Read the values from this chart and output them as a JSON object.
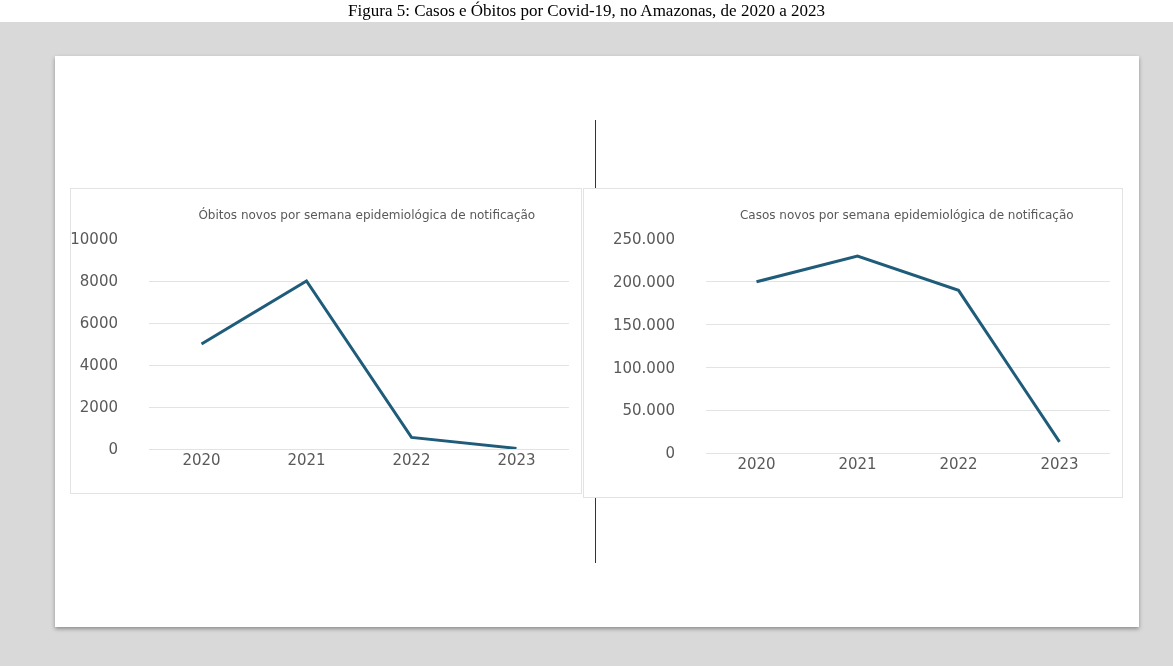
{
  "chart_data": [
    {
      "type": "line",
      "title": "Óbitos novos por semana epidemiológica de notificação",
      "annotations": [
        "Figura 5: Casos e Óbitos por Covid-19, no Amazonas, de 2020 a 2023"
      ],
      "categories": [
        "2020",
        "2021",
        "2022",
        "2023"
      ],
      "series": [
        {
          "color": "#1f5c7a",
          "values": [
            5000,
            8000,
            550,
            30
          ]
        }
      ],
      "ylim": [
        0,
        10000
      ],
      "yticks": [
        0,
        2000,
        4000,
        6000,
        8000,
        10000
      ],
      "grid": "y",
      "marker": "none",
      "line_style": "solid"
    },
    {
      "type": "line",
      "title": "Casos novos por semana epidemiológica de notificação",
      "categories": [
        "2020",
        "2021",
        "2022",
        "2023"
      ],
      "series": [
        {
          "color": "#1f5c7a",
          "values": [
            200000,
            230000,
            190000,
            13000
          ]
        }
      ],
      "ylim": [
        0,
        250000
      ],
      "yticks": [
        0,
        {
          "value": 50000,
          "label": "50.000"
        },
        {
          "value": 100000,
          "label": "100.000"
        },
        {
          "value": 150000,
          "label": "150.000"
        },
        {
          "value": 200000,
          "label": "200.000"
        },
        {
          "value": 250000,
          "label": "250.000"
        }
      ],
      "grid": "y",
      "marker": "none",
      "line_style": "solid"
    }
  ]
}
